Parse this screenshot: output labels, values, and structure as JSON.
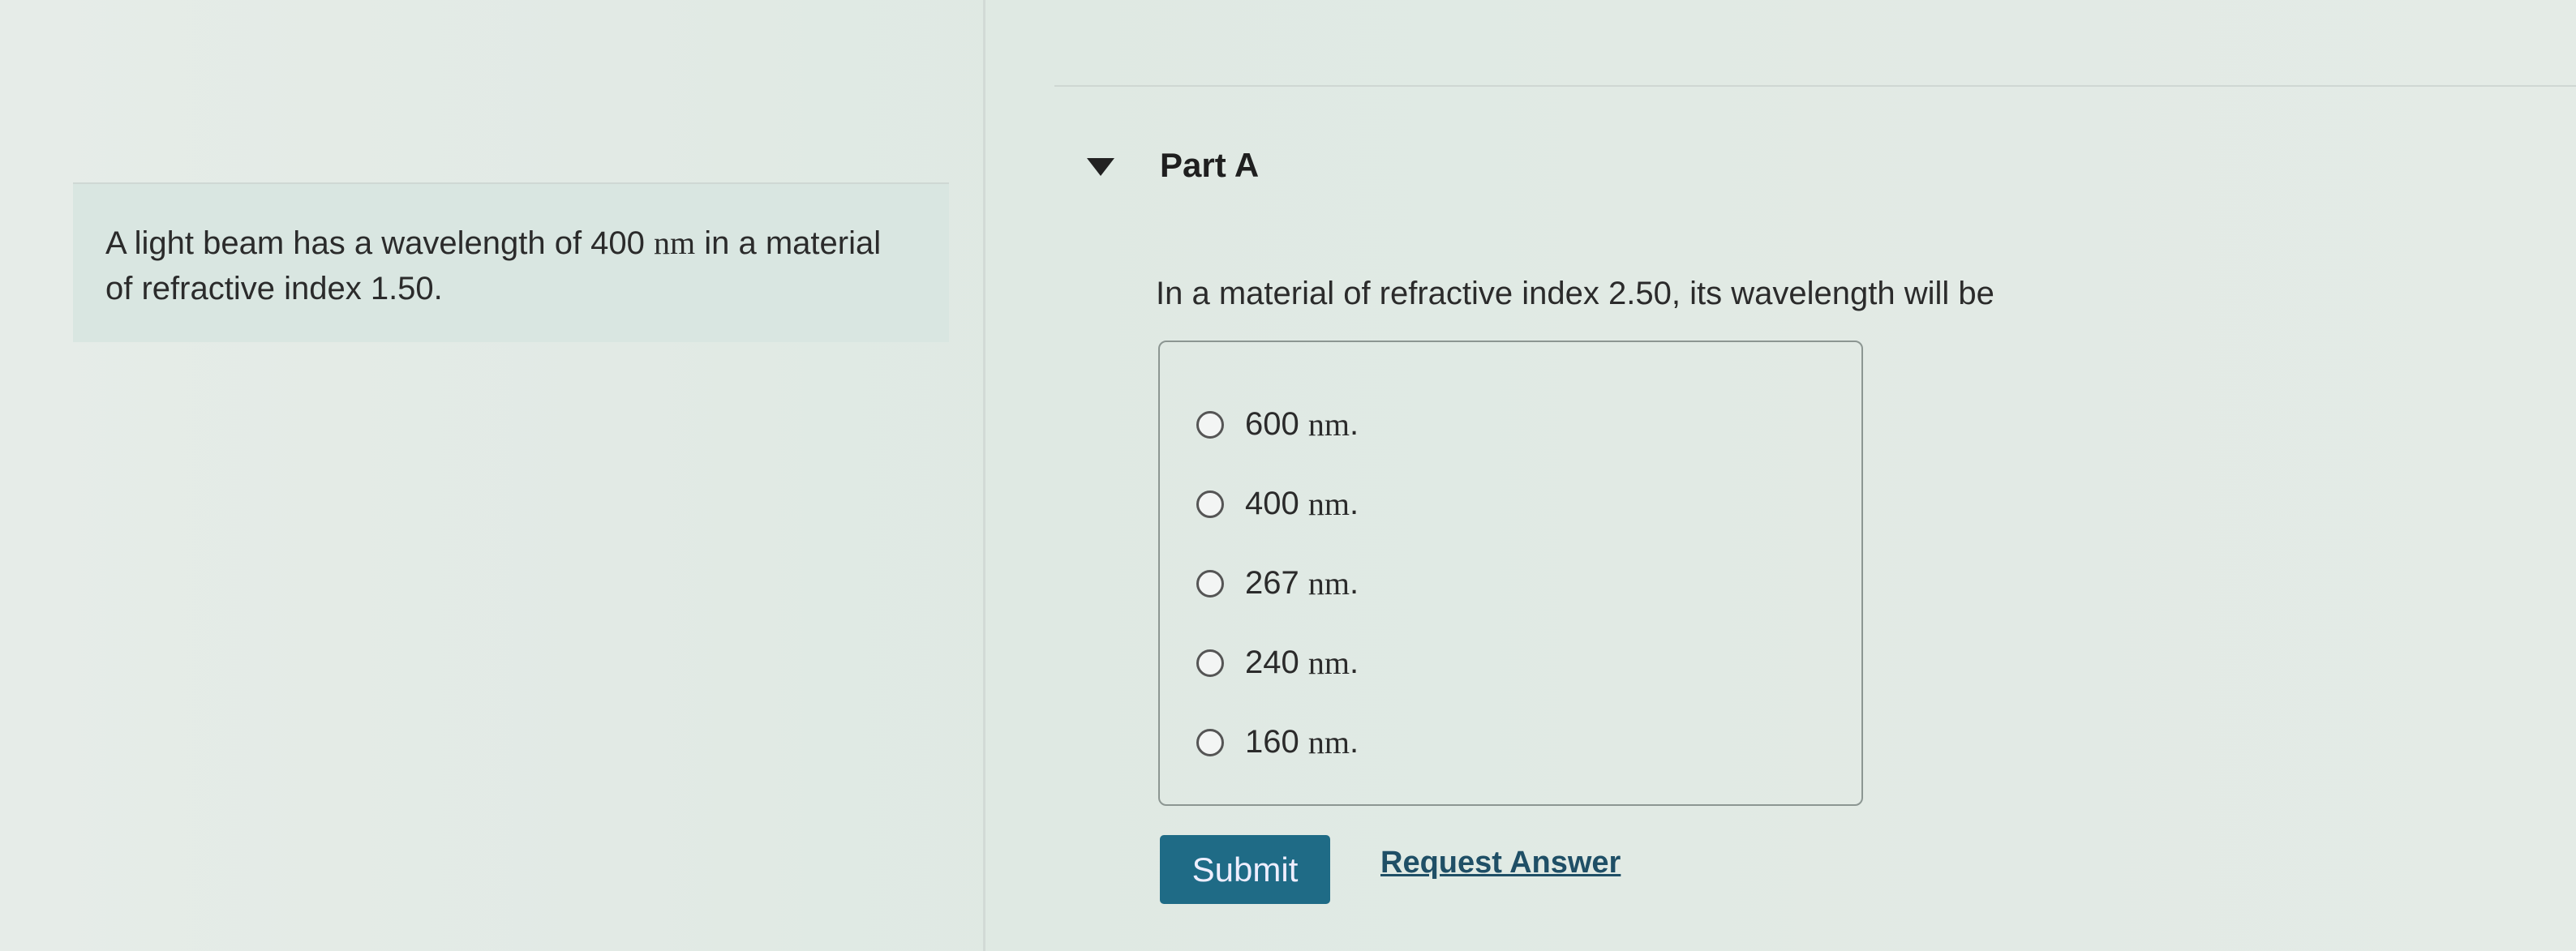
{
  "intro": {
    "text_before": "A light beam has a wavelength of 400 ",
    "unit": "nm",
    "text_after": " in a material of refractive index 1.50."
  },
  "part": {
    "title": "Part A",
    "question": "In a material of refractive index 2.50, its wavelength will be"
  },
  "options": [
    {
      "value": "600",
      "unit": "nm",
      "suffix": " ."
    },
    {
      "value": "400",
      "unit": "nm",
      "suffix": " ."
    },
    {
      "value": "267",
      "unit": "nm",
      "suffix": " ."
    },
    {
      "value": "240",
      "unit": "nm",
      "suffix": " ."
    },
    {
      "value": "160",
      "unit": "nm",
      "suffix": " ."
    }
  ],
  "actions": {
    "submit": "Submit",
    "request_answer": "Request Answer"
  },
  "colors": {
    "submit_bg": "#1f6b86",
    "link": "#1f4f66"
  }
}
